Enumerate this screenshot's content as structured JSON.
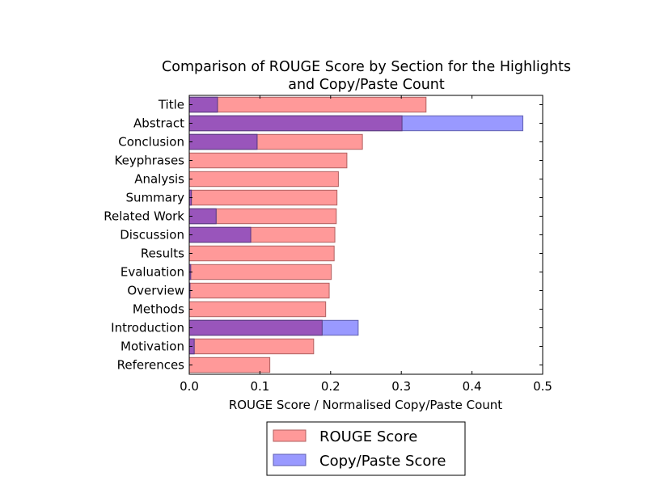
{
  "chart_data": {
    "type": "bar",
    "orientation": "horizontal",
    "title_line1": "Comparison of ROUGE Score by Section for the Highlights",
    "title_line2": "and Copy/Paste Count",
    "xlabel": "ROUGE Score / Normalised Copy/Paste Count",
    "ylabel": "",
    "xlim": [
      0,
      0.5
    ],
    "xticks": [
      "0.0",
      "0.1",
      "0.2",
      "0.3",
      "0.4",
      "0.5"
    ],
    "grid": false,
    "legend_position": "bottom-center",
    "categories": [
      "Title",
      "Abstract",
      "Conclusion",
      "Keyphrases",
      "Analysis",
      "Summary",
      "Related Work",
      "Discussion",
      "Results",
      "Evaluation",
      "Overview",
      "Methods",
      "Introduction",
      "Motivation",
      "References"
    ],
    "series": [
      {
        "name": "ROUGE Score",
        "color": "#ff9999",
        "edge_color": "#b06060",
        "values": [
          0.335,
          0.301,
          0.245,
          0.223,
          0.211,
          0.209,
          0.208,
          0.206,
          0.205,
          0.201,
          0.198,
          0.193,
          0.188,
          0.176,
          0.114
        ]
      },
      {
        "name": "Copy/Paste Score",
        "color": "#9999ff",
        "edge_color": "#6060b0",
        "values": [
          0.04,
          0.472,
          0.096,
          0.0,
          0.0,
          0.003,
          0.038,
          0.087,
          0.0,
          0.002,
          0.001,
          0.0,
          0.239,
          0.007,
          0.0
        ]
      }
    ],
    "overlap_color": "#9955bb"
  }
}
